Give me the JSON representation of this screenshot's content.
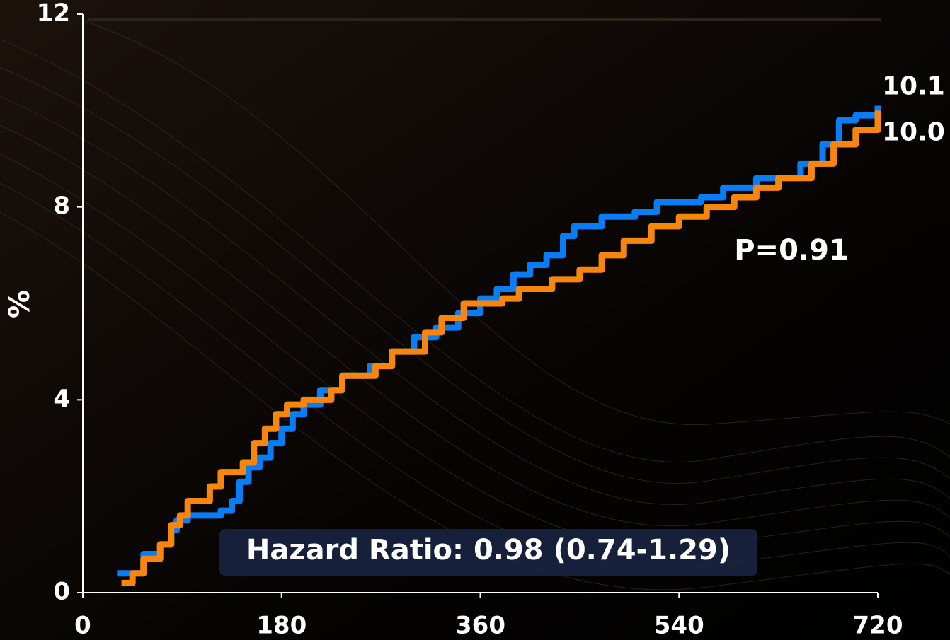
{
  "chart_data": {
    "type": "line",
    "step": true,
    "ylabel": "%",
    "annotations": [
      "P=0.91",
      "Hazard Ratio: 0.98 (0.74-1.29)"
    ],
    "xlim": [
      0,
      720
    ],
    "xticks": [
      0,
      180,
      360,
      540,
      720
    ],
    "ylim": [
      0,
      12
    ],
    "yticks": [
      0,
      4,
      8,
      12
    ],
    "series": [
      {
        "color": "#0a7df5",
        "x": [
          31,
          55,
          70,
          80,
          85,
          95,
          125,
          135,
          142,
          150,
          160,
          170,
          180,
          190,
          200,
          215,
          235,
          260,
          280,
          300,
          320,
          340,
          360,
          375,
          390,
          405,
          420,
          435,
          445,
          470,
          500,
          520,
          560,
          580,
          610,
          650,
          670,
          685,
          700,
          720
        ],
        "values": [
          0.4,
          0.8,
          1.0,
          1.3,
          1.5,
          1.6,
          1.7,
          1.9,
          2.3,
          2.6,
          2.8,
          3.1,
          3.4,
          3.7,
          3.9,
          4.2,
          4.5,
          4.7,
          5.0,
          5.3,
          5.5,
          5.8,
          6.1,
          6.3,
          6.6,
          6.8,
          7.0,
          7.4,
          7.6,
          7.8,
          7.9,
          8.1,
          8.2,
          8.4,
          8.6,
          8.9,
          9.3,
          9.8,
          9.9,
          10.1
        ],
        "value_labels": [
          null,
          null,
          null,
          null,
          null,
          null,
          null,
          null,
          null,
          null,
          null,
          null,
          null,
          null,
          null,
          null,
          null,
          null,
          null,
          null,
          null,
          null,
          null,
          null,
          null,
          null,
          null,
          null,
          null,
          null,
          null,
          null,
          null,
          null,
          null,
          null,
          null,
          null,
          null,
          "10.1"
        ]
      },
      {
        "color": "#f7860f",
        "x": [
          35,
          45,
          55,
          70,
          80,
          88,
          95,
          115,
          125,
          145,
          155,
          165,
          175,
          185,
          200,
          225,
          235,
          265,
          280,
          310,
          325,
          345,
          380,
          395,
          425,
          450,
          470,
          490,
          515,
          540,
          565,
          590,
          610,
          630,
          660,
          680,
          700,
          720
        ],
        "values": [
          0.2,
          0.4,
          0.7,
          1.0,
          1.4,
          1.6,
          1.9,
          2.2,
          2.5,
          2.7,
          3.1,
          3.4,
          3.7,
          3.9,
          4.0,
          4.2,
          4.5,
          4.7,
          5.0,
          5.4,
          5.7,
          6.0,
          6.1,
          6.3,
          6.5,
          6.7,
          7.0,
          7.3,
          7.6,
          7.8,
          8.0,
          8.2,
          8.4,
          8.6,
          8.9,
          9.3,
          9.6,
          10.0
        ],
        "value_labels": [
          null,
          null,
          null,
          null,
          null,
          null,
          null,
          null,
          null,
          null,
          null,
          null,
          null,
          null,
          null,
          null,
          null,
          null,
          null,
          null,
          null,
          null,
          null,
          null,
          null,
          null,
          null,
          null,
          null,
          null,
          null,
          null,
          null,
          null,
          null,
          null,
          null,
          "10.0"
        ]
      }
    ]
  }
}
